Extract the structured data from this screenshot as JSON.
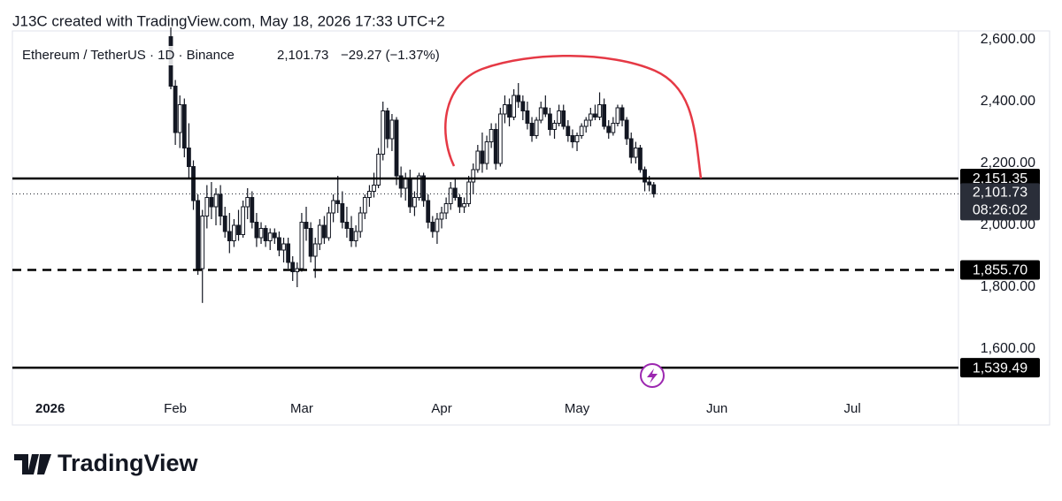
{
  "chart_data": {
    "type": "candlestick",
    "title": "J13C created with TradingView.com, May 18, 2026 17:33 UTC+2",
    "symbol": "Ethereum / TetherUS · 1D · Binance",
    "change": "−29.27 (−1.37%)",
    "brand": "TradingView",
    "up_color": "#ffffff",
    "down_color": "#131722",
    "xlim": [
      -5.1,
      204.5
    ],
    "xticks": [
      {
        "value": 0,
        "label": "2026"
      },
      {
        "value": 31,
        "label": "Feb"
      },
      {
        "value": 59,
        "label": "Mar"
      },
      {
        "value": 90,
        "label": "Apr"
      },
      {
        "value": 120,
        "label": "May"
      },
      {
        "value": 151,
        "label": "Jun"
      },
      {
        "value": 181,
        "label": "Jul"
      }
    ],
    "ylim": [
      1451.4,
      2628.6
    ],
    "yticks": [
      {
        "value": 1600,
        "label": "1,600.00"
      },
      {
        "value": 1800,
        "label": "1,800.00"
      },
      {
        "value": 2000,
        "label": "2,000.00"
      },
      {
        "value": 2200,
        "label": "2,200.00"
      },
      {
        "value": 2400,
        "label": "2,400.00"
      },
      {
        "value": 2600,
        "label": "2,600.00"
      }
    ],
    "levels": [
      {
        "value": 2151.35,
        "label": "2,151.35",
        "style": "solid"
      },
      {
        "value": 1855.7,
        "label": "1,855.70",
        "style": "dashed"
      },
      {
        "value": 1539.49,
        "label": "1,539.49",
        "style": "solid"
      }
    ],
    "last_price": {
      "value": 2101.73,
      "label": "2,101.73",
      "countdown": "08:26:02"
    },
    "candles": [
      [
        30,
        2610,
        2640,
        2440,
        2450
      ],
      [
        31,
        2450,
        2470,
        2260,
        2300
      ],
      [
        32,
        2300,
        2420,
        2250,
        2390
      ],
      [
        33,
        2390,
        2410,
        2220,
        2250
      ],
      [
        34,
        2250,
        2330,
        2150,
        2190
      ],
      [
        35,
        2190,
        2210,
        2050,
        2080
      ],
      [
        36,
        2080,
        2100,
        1840,
        1860
      ],
      [
        37,
        1860,
        2050,
        1749,
        2030
      ],
      [
        38,
        2030,
        2130,
        1990,
        2090
      ],
      [
        39,
        2090,
        2140,
        2020,
        2060
      ],
      [
        40,
        2060,
        2120,
        2000,
        2100
      ],
      [
        41,
        2100,
        2130,
        2000,
        2030
      ],
      [
        42,
        2030,
        2060,
        1960,
        1980
      ],
      [
        43,
        1980,
        2040,
        1910,
        1950
      ],
      [
        44,
        1950,
        2020,
        1930,
        2000
      ],
      [
        45,
        2000,
        2050,
        1950,
        1970
      ],
      [
        46,
        1970,
        2080,
        1960,
        2060
      ],
      [
        47,
        2060,
        2120,
        2020,
        2090
      ],
      [
        48,
        2090,
        2110,
        1990,
        2010
      ],
      [
        49,
        2010,
        2040,
        1930,
        1960
      ],
      [
        50,
        1960,
        2010,
        1940,
        1990
      ],
      [
        51,
        1990,
        2000,
        1930,
        1950
      ],
      [
        52,
        1950,
        1990,
        1920,
        1975
      ],
      [
        53,
        1975,
        1990,
        1940,
        1960
      ],
      [
        54,
        1960,
        1980,
        1900,
        1920
      ],
      [
        55,
        1920,
        1960,
        1880,
        1940
      ],
      [
        56,
        1940,
        1960,
        1860,
        1880
      ],
      [
        57,
        1880,
        1900,
        1820,
        1850
      ],
      [
        58,
        1850,
        1880,
        1800,
        1860
      ],
      [
        59,
        1860,
        2040,
        1850,
        2010
      ],
      [
        60,
        2010,
        2060,
        1950,
        1990
      ],
      [
        61,
        1990,
        2010,
        1880,
        1900
      ],
      [
        62,
        1900,
        1960,
        1830,
        1940
      ],
      [
        63,
        1940,
        2020,
        1920,
        2000
      ],
      [
        64,
        2000,
        2030,
        1940,
        1960
      ],
      [
        65,
        1960,
        2060,
        1950,
        2040
      ],
      [
        66,
        2040,
        2100,
        2010,
        2080
      ],
      [
        67,
        2080,
        2160,
        2040,
        2070
      ],
      [
        68,
        2070,
        2110,
        1990,
        2010
      ],
      [
        69,
        2010,
        2060,
        1960,
        1990
      ],
      [
        70,
        1990,
        2030,
        1930,
        1950
      ],
      [
        71,
        1950,
        2000,
        1930,
        1980
      ],
      [
        72,
        1980,
        2060,
        1960,
        2040
      ],
      [
        73,
        2040,
        2100,
        2020,
        2090
      ],
      [
        74,
        2090,
        2130,
        2060,
        2110
      ],
      [
        75,
        2110,
        2170,
        2090,
        2130
      ],
      [
        76,
        2130,
        2250,
        2120,
        2230
      ],
      [
        77,
        2230,
        2400,
        2210,
        2370
      ],
      [
        78,
        2370,
        2380,
        2250,
        2280
      ],
      [
        79,
        2280,
        2360,
        2240,
        2340
      ],
      [
        80,
        2340,
        2350,
        2130,
        2160
      ],
      [
        81,
        2160,
        2190,
        2090,
        2120
      ],
      [
        82,
        2120,
        2170,
        2080,
        2150
      ],
      [
        83,
        2150,
        2180,
        2040,
        2060
      ],
      [
        84,
        2060,
        2110,
        2030,
        2090
      ],
      [
        85,
        2090,
        2170,
        2080,
        2160
      ],
      [
        86,
        2160,
        2170,
        2060,
        2080
      ],
      [
        87,
        2080,
        2100,
        1990,
        2010
      ],
      [
        88,
        2010,
        2030,
        1960,
        1980
      ],
      [
        89,
        1980,
        2040,
        1940,
        2020
      ],
      [
        90,
        2020,
        2060,
        1990,
        2040
      ],
      [
        91,
        2040,
        2090,
        2020,
        2070
      ],
      [
        92,
        2070,
        2140,
        2050,
        2120
      ],
      [
        93,
        2120,
        2150,
        2080,
        2090
      ],
      [
        94,
        2090,
        2100,
        2040,
        2060
      ],
      [
        95,
        2060,
        2090,
        2040,
        2070
      ],
      [
        96,
        2070,
        2160,
        2060,
        2140
      ],
      [
        97,
        2140,
        2200,
        2100,
        2180
      ],
      [
        98,
        2180,
        2260,
        2170,
        2240
      ],
      [
        99,
        2240,
        2300,
        2170,
        2200
      ],
      [
        100,
        2200,
        2290,
        2180,
        2270
      ],
      [
        101,
        2270,
        2330,
        2250,
        2310
      ],
      [
        102,
        2310,
        2330,
        2180,
        2200
      ],
      [
        103,
        2200,
        2380,
        2190,
        2360
      ],
      [
        104,
        2360,
        2420,
        2330,
        2390
      ],
      [
        105,
        2390,
        2410,
        2320,
        2350
      ],
      [
        106,
        2350,
        2440,
        2340,
        2420
      ],
      [
        107,
        2420,
        2460,
        2380,
        2400
      ],
      [
        108,
        2400,
        2420,
        2340,
        2370
      ],
      [
        109,
        2370,
        2400,
        2310,
        2330
      ],
      [
        110,
        2330,
        2350,
        2270,
        2290
      ],
      [
        111,
        2290,
        2350,
        2280,
        2340
      ],
      [
        112,
        2340,
        2400,
        2330,
        2380
      ],
      [
        113,
        2380,
        2420,
        2350,
        2360
      ],
      [
        114,
        2360,
        2380,
        2290,
        2310
      ],
      [
        115,
        2310,
        2340,
        2280,
        2330
      ],
      [
        116,
        2330,
        2390,
        2320,
        2370
      ],
      [
        117,
        2370,
        2390,
        2310,
        2320
      ],
      [
        118,
        2320,
        2340,
        2270,
        2290
      ],
      [
        119,
        2290,
        2310,
        2250,
        2270
      ],
      [
        120,
        2270,
        2300,
        2240,
        2290
      ],
      [
        121,
        2290,
        2330,
        2280,
        2320
      ],
      [
        122,
        2320,
        2350,
        2300,
        2340
      ],
      [
        123,
        2340,
        2380,
        2320,
        2360
      ],
      [
        124,
        2360,
        2390,
        2340,
        2350
      ],
      [
        125,
        2350,
        2430,
        2340,
        2390
      ],
      [
        126,
        2390,
        2410,
        2310,
        2320
      ],
      [
        127,
        2320,
        2340,
        2280,
        2300
      ],
      [
        128,
        2300,
        2350,
        2290,
        2330
      ],
      [
        129,
        2330,
        2390,
        2320,
        2380
      ],
      [
        130,
        2380,
        2390,
        2320,
        2340
      ],
      [
        131,
        2340,
        2350,
        2260,
        2280
      ],
      [
        132,
        2280,
        2300,
        2200,
        2220
      ],
      [
        133,
        2220,
        2270,
        2200,
        2250
      ],
      [
        134,
        2250,
        2260,
        2170,
        2180
      ],
      [
        135,
        2180,
        2190,
        2110,
        2140
      ],
      [
        136,
        2140,
        2160,
        2110,
        2131
      ],
      [
        137,
        2131,
        2140,
        2090,
        2101.73
      ]
    ]
  }
}
